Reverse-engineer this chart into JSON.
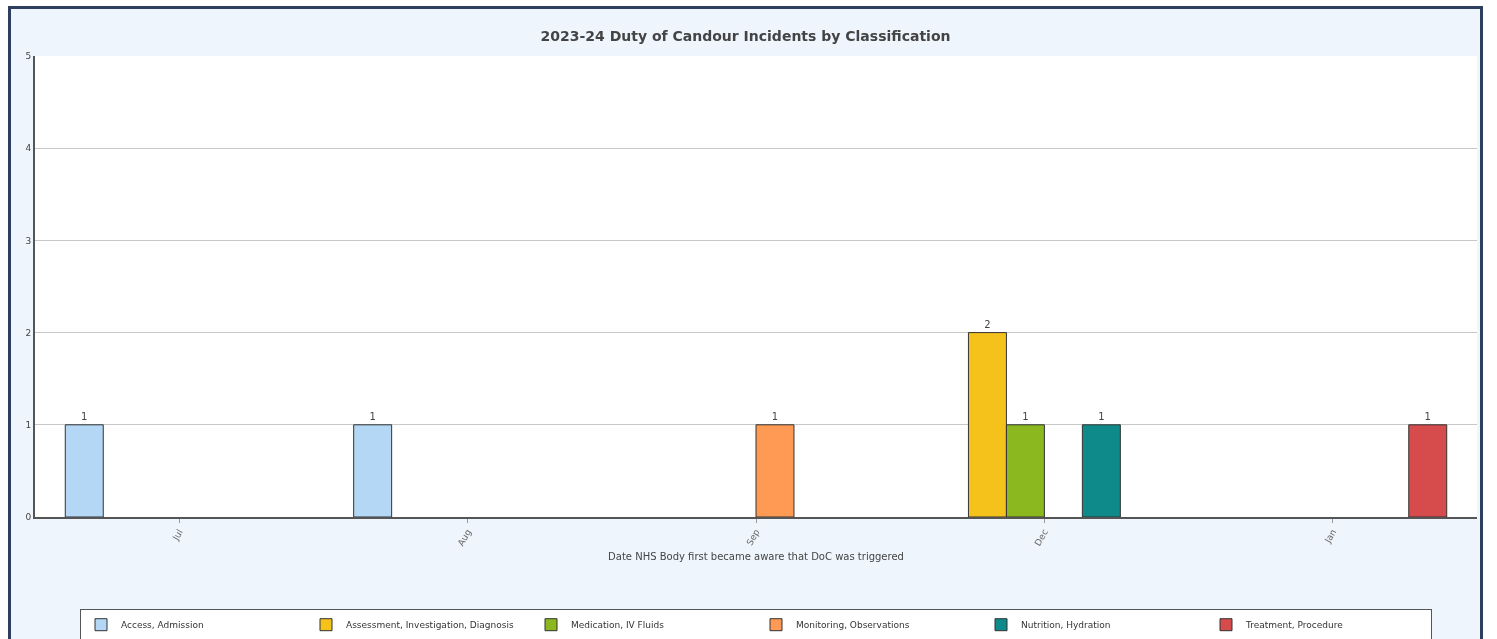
{
  "chart_data": {
    "type": "bar",
    "title": "2023-24 Duty of Candour Incidents by Classification",
    "xlabel": "Date NHS Body first became aware that DoC was triggered",
    "categories": [
      "Jul",
      "Aug",
      "Sep",
      "Dec",
      "Jan"
    ],
    "series": [
      {
        "name": "Access, Admission",
        "color": "#b3d7f5",
        "values": [
          1,
          1,
          null,
          null,
          null
        ]
      },
      {
        "name": "Assessment, Investigation, Diagnosis",
        "color": "#f5c21b",
        "values": [
          null,
          null,
          null,
          2,
          null
        ]
      },
      {
        "name": "Medication, IV Fluids",
        "color": "#8ab81e",
        "values": [
          null,
          null,
          null,
          1,
          null
        ]
      },
      {
        "name": "Monitoring, Observations",
        "color": "#ff9a55",
        "values": [
          null,
          null,
          1,
          null,
          null
        ]
      },
      {
        "name": "Nutrition, Hydration",
        "color": "#0f8a8a",
        "values": [
          null,
          null,
          null,
          1,
          null
        ]
      },
      {
        "name": "Treatment, Procedure",
        "color": "#d64b4b",
        "values": [
          null,
          null,
          null,
          null,
          1
        ]
      }
    ],
    "ylim": [
      0,
      5
    ],
    "yticks": [
      0,
      1,
      2,
      3,
      4,
      5
    ],
    "grid": "y",
    "data_labels": true,
    "legend": "bottom"
  }
}
